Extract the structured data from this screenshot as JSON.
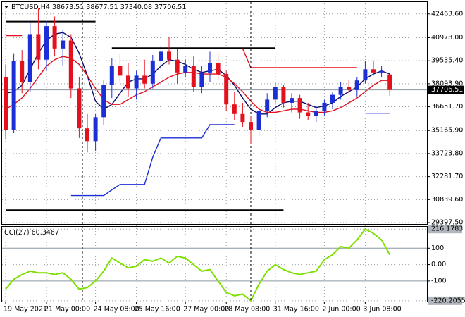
{
  "chart_data": {
    "type": "candlestick",
    "title": "BTCUSD,H4",
    "categories": [
      "19 May 2021",
      null,
      null,
      null,
      null,
      "21 May 00:00",
      null,
      null,
      null,
      null,
      null,
      "24 May 08:00",
      null,
      null,
      null,
      null,
      "25 May 16:00",
      null,
      null,
      null,
      null,
      null,
      "27 May 00:00",
      null,
      null,
      null,
      null,
      "28 May 08:00",
      null,
      null,
      null,
      null,
      null,
      "31 May 16:00",
      null,
      null,
      null,
      null,
      null,
      "2 Jun 00:00",
      null,
      null,
      null,
      null,
      "3 Jun 08:00",
      null,
      null,
      null
    ],
    "open": [
      38500,
      35200,
      39500,
      38200,
      41200,
      39600,
      41700,
      40300,
      40800,
      37800,
      35300,
      34500,
      36000,
      38000,
      39200,
      38600,
      37800,
      38600,
      38100,
      39500,
      40100,
      39600,
      38800,
      39200,
      37900,
      38800,
      39400,
      38700,
      36800,
      36200,
      35700,
      35200,
      36400,
      37100,
      37900,
      36900,
      37200,
      36300,
      36100,
      36400,
      36900,
      37400,
      37900,
      37700,
      38300,
      39000,
      38800,
      38673.51
    ],
    "high": [
      39300,
      40000,
      40200,
      41900,
      42800,
      42000,
      42300,
      41500,
      41200,
      38500,
      36200,
      36200,
      38300,
      39700,
      40000,
      39400,
      38900,
      39600,
      39900,
      40500,
      41000,
      40300,
      39600,
      39800,
      39200,
      40100,
      40000,
      38900,
      37600,
      36900,
      36100,
      36700,
      37500,
      38200,
      38000,
      37500,
      37400,
      36900,
      36700,
      37100,
      37600,
      38200,
      38300,
      38500,
      39500,
      39500,
      39200,
      38677.51
    ],
    "low": [
      34600,
      35000,
      37500,
      37600,
      39000,
      38900,
      39800,
      39200,
      37200,
      34700,
      33800,
      33900,
      35500,
      37200,
      38200,
      37300,
      37100,
      37800,
      37800,
      39000,
      39300,
      38100,
      38500,
      37600,
      37500,
      38200,
      38300,
      36400,
      35800,
      35400,
      34300,
      34800,
      36000,
      36800,
      36600,
      36300,
      35900,
      35800,
      35700,
      36100,
      36500,
      37100,
      37500,
      37300,
      38100,
      38600,
      38500,
      37340.08
    ],
    "close": [
      35200,
      39500,
      38200,
      41200,
      39600,
      41700,
      40300,
      40800,
      37800,
      35300,
      34500,
      36000,
      38000,
      39200,
      38600,
      37800,
      38600,
      38100,
      39500,
      40100,
      39600,
      38800,
      39200,
      37900,
      38800,
      39400,
      38700,
      36800,
      36200,
      35700,
      35200,
      36400,
      37100,
      37900,
      36900,
      37200,
      36300,
      36100,
      36400,
      36900,
      37400,
      37900,
      37700,
      38300,
      39000,
      38800,
      38900,
      37706.51
    ],
    "up_color": "#1c2fd6",
    "down_color": "#e3101e",
    "series": [
      {
        "color": "#0a0a6a",
        "values": [
          37500,
          37600,
          38000,
          39000,
          40000,
          40800,
          41200,
          41300,
          41000,
          40000,
          38600,
          37000,
          36500,
          36800,
          37500,
          38200,
          38400,
          38400,
          38700,
          39200,
          39600,
          39500,
          39300,
          39000,
          38800,
          38900,
          39000,
          38600,
          38000,
          37200,
          36500,
          36200,
          36200,
          36600,
          36900,
          37000,
          37000,
          36800,
          36600,
          36700,
          36900,
          37300,
          37600,
          37900,
          38400,
          38700,
          38900,
          38700
        ]
      },
      {
        "color": "#e3101e",
        "values": [
          36500,
          36800,
          37200,
          37800,
          38500,
          39200,
          39600,
          39800,
          39700,
          39300,
          38600,
          37800,
          37100,
          36800,
          36800,
          37100,
          37400,
          37600,
          37900,
          38200,
          38500,
          38700,
          38800,
          38800,
          38700,
          38700,
          38700,
          38500,
          38100,
          37600,
          37000,
          36500,
          36300,
          36300,
          36400,
          36500,
          36500,
          36400,
          36300,
          36300,
          36400,
          36600,
          36900,
          37200,
          37600,
          38000,
          38300,
          38300
        ]
      },
      {
        "color": "#000000",
        "values": [
          41985,
          41985,
          41985,
          41985,
          41985,
          41985,
          41985,
          41985,
          41985,
          41985,
          41985,
          41985,
          null,
          null,
          null,
          null,
          null,
          null,
          null,
          null,
          null,
          null,
          null,
          null,
          null,
          null,
          null,
          null,
          null,
          null,
          null,
          null,
          null,
          null,
          null,
          null,
          null,
          null,
          null,
          null,
          null,
          null,
          null,
          null,
          null,
          null,
          null,
          null
        ]
      },
      {
        "color": "#000000",
        "values": [
          null,
          null,
          null,
          null,
          null,
          null,
          null,
          null,
          null,
          null,
          null,
          null,
          null,
          40330,
          40330,
          40330,
          40330,
          40330,
          40330,
          40330,
          40330,
          40330,
          40330,
          40330,
          40330,
          40330,
          40330,
          40330,
          40330,
          40330,
          40330,
          40330,
          40330,
          40330,
          null,
          null,
          null,
          null,
          null,
          null,
          null,
          null,
          null,
          null,
          null,
          null,
          null,
          null
        ]
      },
      {
        "color": "#000000",
        "values": [
          30180,
          30180,
          30180,
          30180,
          30180,
          30180,
          30180,
          30180,
          30180,
          30180,
          30180,
          30180,
          30180,
          30180,
          30180,
          30180,
          30180,
          30180,
          30180,
          30180,
          30180,
          30180,
          30180,
          30180,
          30180,
          30180,
          30180,
          30180,
          30180,
          30180,
          30180,
          30180,
          30180,
          30180,
          30180,
          null,
          null,
          null,
          null,
          null,
          null,
          null,
          null,
          null,
          null,
          null,
          null,
          null
        ]
      },
      {
        "color": "#e3101e",
        "values": [
          41110,
          41110,
          41110,
          null,
          null,
          null,
          null,
          null,
          null,
          null,
          null,
          null,
          null,
          null,
          null,
          null,
          null,
          null,
          null,
          null,
          null,
          null,
          null,
          null,
          null,
          null,
          null,
          null,
          null,
          40300,
          39100,
          39100,
          39100,
          39100,
          39100,
          39100,
          39100,
          39100,
          39100,
          39100,
          39100,
          39100,
          39100,
          39100,
          null,
          null,
          null,
          null
        ]
      },
      {
        "color": "#1c2fd6",
        "values": [
          null,
          null,
          null,
          null,
          null,
          null,
          null,
          null,
          31090,
          31090,
          31090,
          31090,
          31090,
          31450,
          31790,
          31790,
          31790,
          31790,
          33500,
          34700,
          34700,
          34700,
          34700,
          34700,
          34700,
          35530,
          35530,
          35530,
          35530,
          null,
          null,
          null,
          null,
          null,
          null,
          null,
          null,
          null,
          null,
          null,
          null,
          null,
          null,
          null,
          36250,
          36250,
          36250,
          36250
        ]
      }
    ],
    "ylim": [
      29310,
      43160
    ],
    "yticks": [
      {
        "value": 42463.6,
        "label": "42463.60"
      },
      {
        "value": 40978,
        "label": "40978.00"
      },
      {
        "value": 39535.4,
        "label": "39535.40"
      },
      {
        "value": 38093.9,
        "label": "38093.90"
      },
      {
        "value": 36651.7,
        "label": "36651.70"
      },
      {
        "value": 35165.9,
        "label": "35165.90"
      },
      {
        "value": 33723.8,
        "label": "33723.80"
      },
      {
        "value": 32281.7,
        "label": "32281.70"
      },
      {
        "value": 30839.6,
        "label": "30839.60"
      },
      {
        "value": 29397.5,
        "label": "29397.50"
      }
    ],
    "grid": true,
    "cci": {
      "label": "CCI(27)",
      "color": "#7ee000",
      "values": [
        -150,
        -90,
        -60,
        -40,
        -50,
        -50,
        -60,
        -50,
        -90,
        -150,
        -140,
        -100,
        -40,
        40,
        10,
        -20,
        -10,
        30,
        20,
        40,
        10,
        50,
        40,
        0,
        -40,
        -30,
        -100,
        -170,
        -190,
        -180,
        -220.2055,
        -120,
        -40,
        0,
        -30,
        -50,
        -60,
        -50,
        -40,
        30,
        60,
        110,
        100,
        150,
        216.1783,
        190,
        150,
        60.3467
      ],
      "y2lim": [
        -225,
        230
      ],
      "y2ticks": [
        216.1783,
        100,
        {
          "value": 0,
          "label": "0.00"
        },
        -100,
        -220.2055
      ]
    }
  }
}
